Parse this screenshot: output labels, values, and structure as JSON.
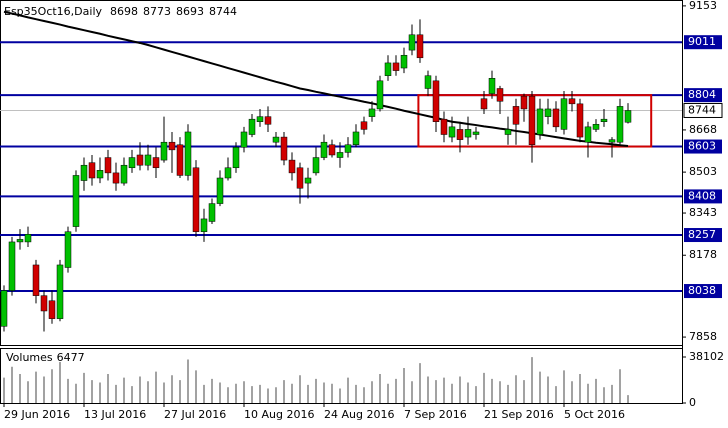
{
  "chart_data": {
    "type": "candlestick",
    "title": "Esp35Oct16,Daily",
    "up_color": "#00c000",
    "down_color": "#d00000",
    "ma_color": "#000000",
    "level_color": "#0000a0",
    "box_color": "#d00000",
    "open": [
      7900,
      8040,
      8230,
      8230,
      8140,
      8020,
      8000,
      7930,
      8130,
      8290,
      8470,
      8540,
      8480,
      8560,
      8500,
      8460,
      8520,
      8570,
      8530,
      8560,
      8550,
      8620,
      8610,
      8490,
      8520,
      8270,
      8310,
      8380,
      8480,
      8520,
      8600,
      8650,
      8700,
      8720,
      8620,
      8640,
      8550,
      8520,
      8460,
      8500,
      8560,
      8610,
      8560,
      8580,
      8610,
      8700,
      8720,
      8750,
      8880,
      8930,
      8910,
      8980,
      9040,
      8830,
      8860,
      8710,
      8640,
      8670,
      8640,
      8650,
      8790,
      8810,
      8830,
      8650,
      8760,
      8800,
      8800,
      8650,
      8720,
      8750,
      8670,
      8790,
      8770,
      8620,
      8670,
      8700,
      8620,
      8620,
      8698
    ],
    "high": [
      8060,
      8250,
      8280,
      8290,
      8160,
      8040,
      8040,
      8160,
      8290,
      8510,
      8560,
      8570,
      8560,
      8590,
      8540,
      8560,
      8590,
      8620,
      8610,
      8600,
      8720,
      8660,
      8640,
      8690,
      8550,
      8360,
      8400,
      8510,
      8560,
      8620,
      8680,
      8730,
      8750,
      8760,
      8660,
      8660,
      8580,
      8540,
      8520,
      8600,
      8650,
      8630,
      8620,
      8640,
      8690,
      8720,
      8780,
      8880,
      8960,
      8960,
      8990,
      9080,
      9100,
      8900,
      8880,
      8740,
      8720,
      8700,
      8720,
      8680,
      8820,
      8900,
      8840,
      8720,
      8790,
      8810,
      8820,
      8790,
      8790,
      8780,
      8820,
      8820,
      8790,
      8700,
      8710,
      8750,
      8640,
      8790,
      8773
    ],
    "low": [
      7880,
      8020,
      8200,
      8210,
      7990,
      7880,
      7910,
      7920,
      8110,
      8270,
      8430,
      8450,
      8460,
      8470,
      8430,
      8450,
      8500,
      8510,
      8510,
      8480,
      8540,
      8500,
      8480,
      8470,
      8250,
      8230,
      8300,
      8370,
      8470,
      8500,
      8580,
      8640,
      8680,
      8660,
      8600,
      8530,
      8470,
      8380,
      8400,
      8490,
      8550,
      8560,
      8520,
      8560,
      8600,
      8650,
      8700,
      8740,
      8860,
      8880,
      8890,
      8960,
      8930,
      8800,
      8660,
      8620,
      8620,
      8580,
      8610,
      8630,
      8730,
      8790,
      8730,
      8610,
      8610,
      8700,
      8540,
      8630,
      8690,
      8660,
      8650,
      8740,
      8620,
      8560,
      8660,
      8680,
      8560,
      8610,
      8693
    ],
    "close": [
      8040,
      8230,
      8240,
      8260,
      8020,
      7960,
      7930,
      8140,
      8270,
      8490,
      8530,
      8480,
      8510,
      8500,
      8460,
      8530,
      8560,
      8530,
      8570,
      8520,
      8620,
      8590,
      8490,
      8660,
      8270,
      8320,
      8380,
      8480,
      8520,
      8600,
      8660,
      8710,
      8720,
      8690,
      8640,
      8550,
      8500,
      8440,
      8480,
      8560,
      8620,
      8570,
      8580,
      8610,
      8660,
      8670,
      8750,
      8860,
      8930,
      8900,
      8960,
      9040,
      8950,
      8880,
      8700,
      8650,
      8680,
      8630,
      8670,
      8660,
      8750,
      8870,
      8780,
      8670,
      8690,
      8750,
      8610,
      8750,
      8750,
      8680,
      8790,
      8770,
      8640,
      8680,
      8690,
      8710,
      8630,
      8760,
      8744
    ],
    "ma": [
      9130,
      9123,
      9116,
      9108,
      9101,
      9094,
      9087,
      9080,
      9072,
      9065,
      9058,
      9051,
      9044,
      9036,
      9029,
      9022,
      9015,
      9008,
      9000,
      8991,
      8982,
      8973,
      8964,
      8955,
      8946,
      8937,
      8928,
      8919,
      8910,
      8901,
      8892,
      8883,
      8874,
      8865,
      8856,
      8848,
      8839,
      8830,
      8824,
      8817,
      8811,
      8804,
      8798,
      8791,
      8785,
      8778,
      8772,
      8765,
      8758,
      8751,
      8743,
      8736,
      8729,
      8722,
      8715,
      8707,
      8700,
      8696,
      8691,
      8687,
      8682,
      8678,
      8673,
      8669,
      8664,
      8660,
      8655,
      8650,
      8645,
      8640,
      8635,
      8630,
      8625,
      8622,
      8618,
      8615,
      8612,
      8608,
      8605
    ],
    "volumes_label": "Volumes",
    "volumes": [
      21000,
      30000,
      24000,
      18000,
      26000,
      22000,
      28000,
      34000,
      20000,
      16000,
      25000,
      19000,
      17000,
      24000,
      15000,
      21000,
      14000,
      22000,
      18000,
      26000,
      17000,
      23000,
      19000,
      36000,
      27000,
      15000,
      20000,
      17000,
      13000,
      16000,
      18000,
      14000,
      15000,
      12000,
      13000,
      19000,
      16000,
      23000,
      15000,
      20000,
      17000,
      16000,
      12000,
      21000,
      15000,
      13000,
      18000,
      24000,
      16000,
      20000,
      29000,
      18000,
      33000,
      22000,
      19000,
      21000,
      16000,
      22000,
      17000,
      14000,
      25000,
      20000,
      18000,
      15000,
      23000,
      19000,
      38000,
      26000,
      22000,
      14000,
      27000,
      18000,
      24000,
      16000,
      20000,
      13000,
      15000,
      28000,
      6477
    ],
    "volume_ylim": [
      0,
      45570
    ],
    "volume_yticks": [
      38102,
      0
    ],
    "ylim": [
      7827,
      9176
    ],
    "yticks": [
      9153,
      8668,
      8503,
      8343,
      8178,
      7858
    ],
    "levels": [
      9011,
      8804,
      8603,
      8408,
      8257,
      8038
    ],
    "current_price": 8744,
    "box": {
      "x": [
        51.8,
        80.9
      ],
      "y": [
        8603,
        8804
      ]
    },
    "xticks": [
      {
        "value": 0,
        "label": "29 Jun 2016"
      },
      {
        "value": 10,
        "label": "13 Jul 2016"
      },
      {
        "value": 20,
        "label": "27 Jul 2016"
      },
      {
        "value": 30,
        "label": "10 Aug 2016"
      },
      {
        "value": 40,
        "label": "24 Aug 2016"
      },
      {
        "value": 50,
        "label": "7 Sep 2016"
      },
      {
        "value": 60,
        "label": "21 Sep 2016"
      },
      {
        "value": 70,
        "label": "5 Oct 2016"
      }
    ]
  }
}
